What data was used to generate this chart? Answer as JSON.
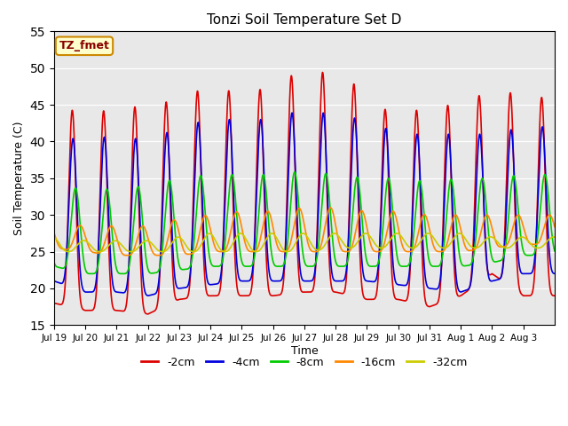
{
  "title": "Tonzi Soil Temperature Set D",
  "xlabel": "Time",
  "ylabel": "Soil Temperature (C)",
  "ylim": [
    15,
    55
  ],
  "yticks": [
    15,
    20,
    25,
    30,
    35,
    40,
    45,
    50,
    55
  ],
  "annotation_text": "TZ_fmet",
  "background_color": "#e8e8e8",
  "series": [
    {
      "label": "-2cm",
      "color": "#dd0000",
      "lw": 1.2
    },
    {
      "label": "-4cm",
      "color": "#0000dd",
      "lw": 1.2
    },
    {
      "label": "-8cm",
      "color": "#00cc00",
      "lw": 1.2
    },
    {
      "label": "-16cm",
      "color": "#ff8800",
      "lw": 1.2
    },
    {
      "label": "-32cm",
      "color": "#cccc00",
      "lw": 1.2
    }
  ],
  "xtick_labels": [
    "Jul 19",
    "Jul 20",
    "Jul 21",
    "Jul 22",
    "Jul 23",
    "Jul 24",
    "Jul 25",
    "Jul 26",
    "Jul 27",
    "Jul 28",
    "Jul 29",
    "Jul 30",
    "Jul 31",
    "Aug 1",
    "Aug 2",
    "Aug 3"
  ],
  "n_days": 16,
  "pts_per_day": 288,
  "peak_maxes_2": [
    46.0,
    43.0,
    45.0,
    44.5,
    46.0,
    47.5,
    46.5,
    47.5,
    50.0,
    49.0,
    47.0,
    42.5,
    45.5,
    44.5,
    47.5,
    46.0
  ],
  "peak_mins_2": [
    18.0,
    17.0,
    17.0,
    16.5,
    18.5,
    19.0,
    19.0,
    19.0,
    19.5,
    19.5,
    18.5,
    18.5,
    17.5,
    19.0,
    22.0,
    19.0
  ],
  "peak_maxes_4": [
    41.0,
    40.0,
    41.0,
    40.0,
    42.0,
    43.0,
    43.0,
    43.0,
    44.5,
    43.5,
    43.0,
    41.0,
    41.0,
    41.0,
    41.0,
    42.0
  ],
  "peak_mins_4": [
    21.0,
    19.5,
    19.5,
    19.0,
    20.0,
    20.5,
    21.0,
    21.0,
    21.0,
    21.0,
    21.0,
    20.5,
    20.0,
    19.5,
    21.0,
    22.0
  ],
  "peak_maxes_8": [
    34.0,
    33.5,
    33.5,
    34.0,
    35.0,
    35.5,
    35.5,
    35.5,
    36.0,
    35.5,
    35.0,
    35.0,
    34.5,
    35.0,
    35.0,
    35.5
  ],
  "peak_mins_8": [
    23.0,
    22.0,
    22.0,
    22.0,
    22.5,
    23.0,
    23.0,
    23.0,
    23.0,
    23.0,
    23.0,
    23.0,
    23.0,
    23.0,
    23.5,
    24.5
  ],
  "peak_maxes_16": [
    29.0,
    28.5,
    28.5,
    28.5,
    29.5,
    30.0,
    30.5,
    30.5,
    31.0,
    31.0,
    30.5,
    30.5,
    30.0,
    30.0,
    30.0,
    30.0
  ],
  "peak_mins_16": [
    25.5,
    25.0,
    24.5,
    24.5,
    24.5,
    25.0,
    25.0,
    25.0,
    25.0,
    25.0,
    25.0,
    25.0,
    25.0,
    25.0,
    25.5,
    26.0
  ],
  "peak_maxes_32": [
    27.0,
    26.5,
    26.5,
    26.5,
    27.0,
    27.5,
    27.5,
    27.5,
    27.5,
    27.5,
    27.5,
    27.5,
    27.5,
    27.5,
    27.0,
    27.0
  ],
  "peak_mins_32": [
    25.0,
    25.0,
    25.0,
    25.0,
    25.0,
    25.0,
    25.0,
    25.0,
    25.0,
    25.5,
    25.5,
    25.5,
    25.5,
    25.5,
    25.5,
    25.5
  ],
  "peak_hour_2": 14.0,
  "peak_hour_4": 14.5,
  "peak_hour_8": 16.5,
  "peak_hour_16": 20.0,
  "peak_hour_32": 23.0,
  "sharpness_2": 4.0,
  "sharpness_4": 3.5,
  "sharpness_8": 2.5,
  "sharpness_16": 1.8,
  "sharpness_32": 1.2
}
